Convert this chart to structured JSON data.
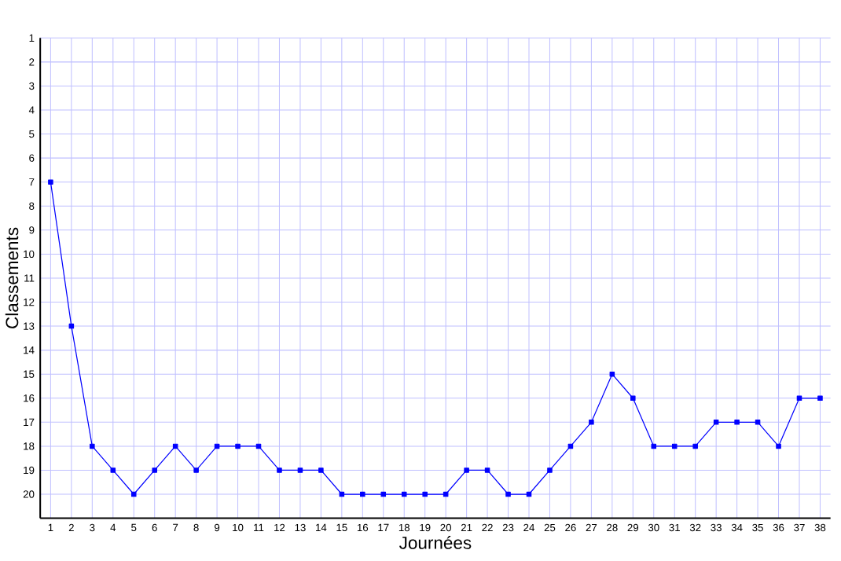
{
  "chart_data": {
    "type": "line",
    "xlabel": "Journées",
    "ylabel": "Classements",
    "x": [
      1,
      2,
      3,
      4,
      5,
      6,
      7,
      8,
      9,
      10,
      11,
      12,
      13,
      14,
      15,
      16,
      17,
      18,
      19,
      20,
      21,
      22,
      23,
      24,
      25,
      26,
      27,
      28,
      29,
      30,
      31,
      32,
      33,
      34,
      35,
      36,
      37,
      38
    ],
    "series": [
      {
        "color": "#0000ff",
        "values": [
          7,
          13,
          18,
          19,
          20,
          19,
          18,
          19,
          18,
          18,
          18,
          19,
          19,
          19,
          20,
          20,
          20,
          20,
          20,
          20,
          19,
          19,
          20,
          20,
          19,
          18,
          17,
          15,
          16,
          18,
          18,
          18,
          17,
          17,
          17,
          18,
          16,
          16
        ]
      }
    ],
    "xlim": [
      0.5,
      38.5
    ],
    "ylim": [
      21,
      1
    ],
    "xticks": [
      1,
      2,
      3,
      4,
      5,
      6,
      7,
      8,
      9,
      10,
      11,
      12,
      13,
      14,
      15,
      16,
      17,
      18,
      19,
      20,
      21,
      22,
      23,
      24,
      25,
      26,
      27,
      28,
      29,
      30,
      31,
      32,
      33,
      34,
      35,
      36,
      37,
      38
    ],
    "yticks": [
      1,
      2,
      3,
      4,
      5,
      6,
      7,
      8,
      9,
      10,
      11,
      12,
      13,
      14,
      15,
      16,
      17,
      18,
      19,
      20
    ],
    "grid": true,
    "marker": "square",
    "line_style": "solid"
  }
}
